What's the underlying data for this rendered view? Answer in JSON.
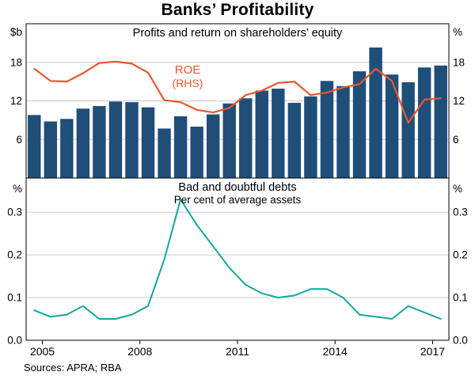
{
  "title": "Banks’ Profitability",
  "source_note": "Sources: APRA; RBA",
  "colors": {
    "bar": "#1f4e79",
    "roe_line": "#e8592c",
    "bdd_line": "#14a79d",
    "grid": "#cccccc",
    "axis": "#000000",
    "background": "#ffffff"
  },
  "x_axis": {
    "domain": [
      2004.5,
      2017.5
    ],
    "tick_years": [
      2005,
      2008,
      2011,
      2014,
      2017
    ],
    "tick_labels": [
      "2005",
      "2008",
      "2011",
      "2014",
      "2017"
    ]
  },
  "chart_data": [
    {
      "type": "bar",
      "panel": "top",
      "title": "Profits and return on shareholders’ equity",
      "left_axis_label": "$b",
      "right_axis_label": "%",
      "ylim": [
        0,
        24
      ],
      "ytick_values": [
        6,
        12,
        18
      ],
      "ytick_labels": [
        "6",
        "12",
        "18"
      ],
      "grid": true,
      "annotation": {
        "line1": "ROE",
        "line2": "(RHS)"
      },
      "categories": [
        "2004H2",
        "2005H1",
        "2005H2",
        "2006H1",
        "2006H2",
        "2007H1",
        "2007H2",
        "2008H1",
        "2008H2",
        "2009H1",
        "2009H2",
        "2010H1",
        "2010H2",
        "2011H1",
        "2011H2",
        "2012H1",
        "2012H2",
        "2013H1",
        "2013H2",
        "2014H1",
        "2014H2",
        "2015H1",
        "2015H2",
        "2016H1",
        "2016H2",
        "2017H1"
      ],
      "series": [
        {
          "name": "Profits",
          "render": "bar",
          "axis": "left",
          "unit": "$b",
          "values": [
            9.8,
            8.8,
            9.2,
            10.8,
            11.2,
            11.9,
            11.8,
            11.0,
            7.7,
            9.6,
            8.0,
            9.9,
            11.6,
            12.4,
            13.6,
            13.9,
            11.7,
            12.7,
            15.1,
            14.3,
            16.6,
            20.3,
            16.1,
            14.9,
            17.2,
            17.5
          ]
        },
        {
          "name": "ROE (RHS)",
          "render": "line",
          "axis": "right",
          "unit": "%",
          "values": [
            17.0,
            15.1,
            15.0,
            16.3,
            17.9,
            18.1,
            17.8,
            16.4,
            12.1,
            11.8,
            10.6,
            10.2,
            10.9,
            12.9,
            13.6,
            14.8,
            15.0,
            12.9,
            13.3,
            14.1,
            14.6,
            17.0,
            15.1,
            8.6,
            12.2,
            12.4
          ]
        }
      ]
    },
    {
      "type": "line",
      "panel": "bottom",
      "title": "Bad and doubtful debts",
      "subtitle": "Per cent of average assets",
      "left_axis_label": "%",
      "right_axis_label": "%",
      "ylim": [
        0,
        0.38
      ],
      "ytick_values": [
        0,
        0.1,
        0.2,
        0.3
      ],
      "ytick_labels": [
        "0.0",
        "0.1",
        "0.2",
        "0.3"
      ],
      "grid": true,
      "categories": [
        "2004H2",
        "2005H1",
        "2005H2",
        "2006H1",
        "2006H2",
        "2007H1",
        "2007H2",
        "2008H1",
        "2008H2",
        "2009H1",
        "2009H2",
        "2010H1",
        "2010H2",
        "2011H1",
        "2011H2",
        "2012H1",
        "2012H2",
        "2013H1",
        "2013H2",
        "2014H1",
        "2014H2",
        "2015H1",
        "2015H2",
        "2016H1",
        "2016H2",
        "2017H1"
      ],
      "series": [
        {
          "name": "Bad and doubtful debts",
          "render": "line",
          "axis": "left",
          "unit": "%",
          "values": [
            0.07,
            0.055,
            0.06,
            0.08,
            0.05,
            0.05,
            0.06,
            0.08,
            0.19,
            0.33,
            0.27,
            0.22,
            0.17,
            0.13,
            0.11,
            0.1,
            0.105,
            0.12,
            0.12,
            0.1,
            0.06,
            0.055,
            0.05,
            0.08,
            0.065,
            0.05
          ]
        }
      ]
    }
  ]
}
